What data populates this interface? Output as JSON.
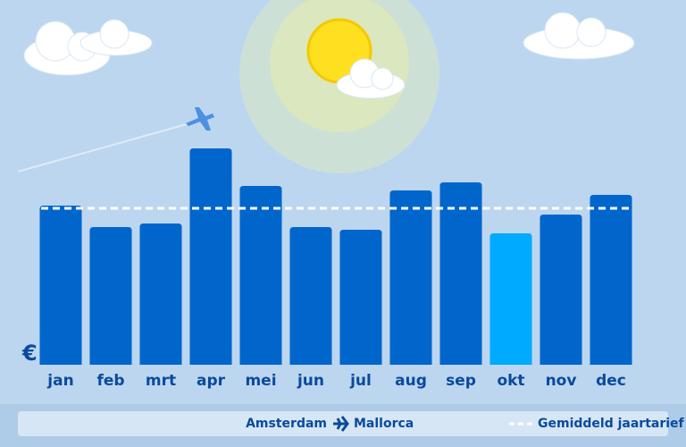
{
  "chart_data": {
    "type": "bar",
    "axis_label": "€",
    "categories": [
      "jan",
      "feb",
      "mrt",
      "apr",
      "mei",
      "jun",
      "jul",
      "aug",
      "sep",
      "okt",
      "nov",
      "dec"
    ],
    "values": [
      178,
      154,
      158,
      242,
      200,
      154,
      151,
      195,
      204,
      147,
      168,
      190
    ],
    "colors": [
      "#0066cc",
      "#0066cc",
      "#0066cc",
      "#0066cc",
      "#0066cc",
      "#0066cc",
      "#0066cc",
      "#0066cc",
      "#0066cc",
      "#00aaff",
      "#0066cc",
      "#0066cc"
    ],
    "ylim": [
      0,
      250
    ],
    "average": {
      "name": "Gemiddeld jaartarief",
      "value": 175,
      "color": "#ffffff"
    },
    "route": {
      "from": "Amsterdam",
      "to": "Mallorca"
    }
  }
}
